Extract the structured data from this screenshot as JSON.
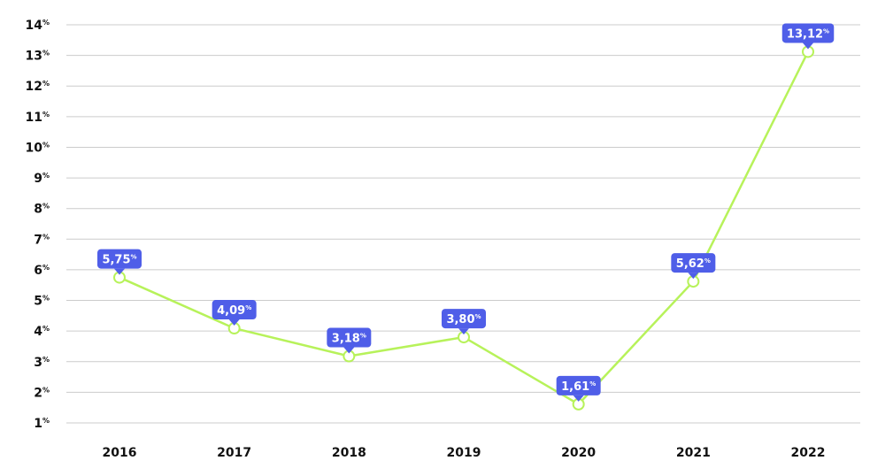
{
  "chart_data": {
    "type": "line",
    "title": "",
    "xlabel": "",
    "ylabel": "",
    "categories": [
      "2016",
      "2017",
      "2018",
      "2019",
      "2020",
      "2021",
      "2022"
    ],
    "series": [
      {
        "values": [
          5.75,
          4.09,
          3.18,
          3.8,
          1.61,
          5.62,
          13.12
        ],
        "labels": [
          "5,75",
          "4,09",
          "3,18",
          "3,80",
          "1,61",
          "5,62",
          "13,12"
        ],
        "color": "#b7f25a"
      }
    ],
    "ylim": [
      1,
      14
    ],
    "yticks": [
      1,
      2,
      3,
      4,
      5,
      6,
      7,
      8,
      9,
      10,
      11,
      12,
      13,
      14
    ],
    "unit_symbol": "%",
    "grid": true,
    "legend": "none",
    "colors": {
      "line": "#b7f25a",
      "marker_fill": "#ffffff",
      "label_bg": "#4f5ee8",
      "label_text": "#ffffff",
      "grid": "#cccccc",
      "axis_text": "#111111"
    }
  }
}
